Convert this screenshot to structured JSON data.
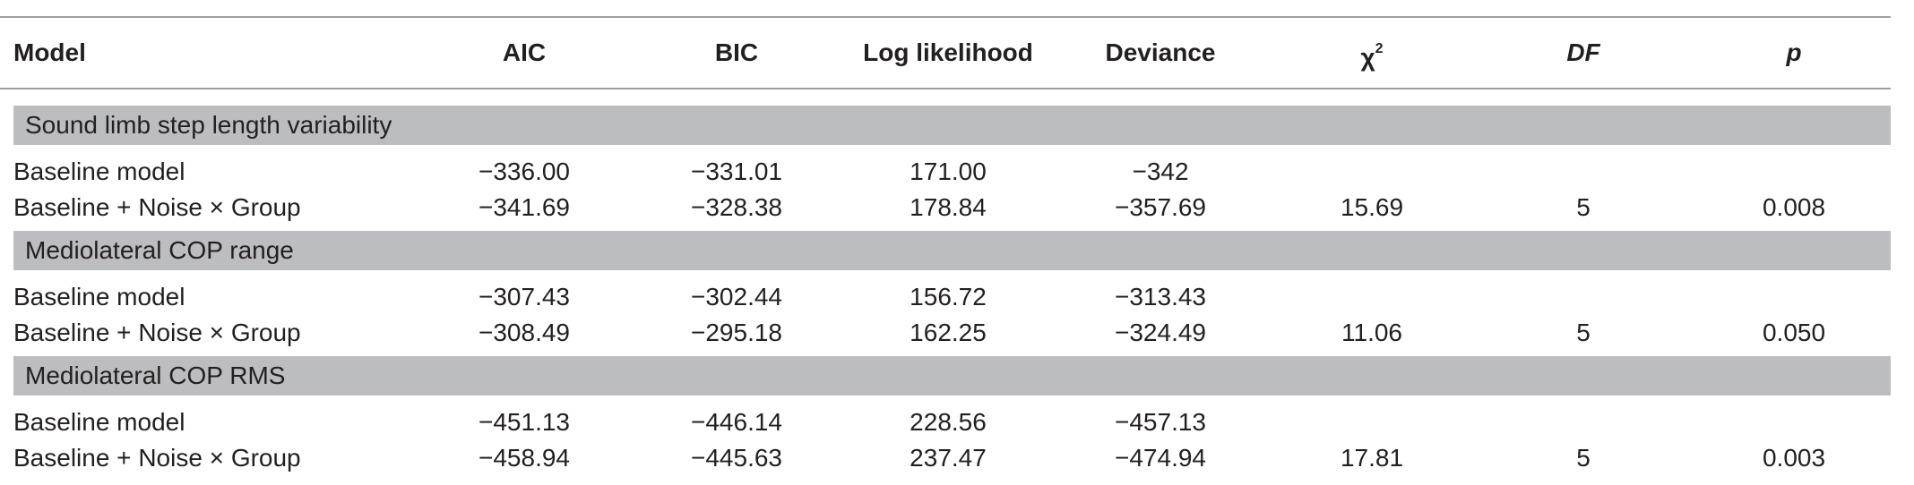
{
  "table": {
    "headers": {
      "model": "Model",
      "aic": "AIC",
      "bic": "BIC",
      "loglik": "Log likelihood",
      "deviance": "Deviance",
      "chi_base": "χ",
      "chi_sup": "2",
      "df": "DF",
      "p": "p"
    },
    "sections": [
      {
        "label": "Sound limb step length variability",
        "rows": [
          {
            "model": "Baseline model",
            "aic": "−336.00",
            "bic": "−331.01",
            "loglik": "171.00",
            "deviance": "−342",
            "chi2": "",
            "df": "",
            "p": ""
          },
          {
            "model": "Baseline + Noise × Group",
            "aic": "−341.69",
            "bic": "−328.38",
            "loglik": "178.84",
            "deviance": "−357.69",
            "chi2": "15.69",
            "df": "5",
            "p": "0.008"
          }
        ]
      },
      {
        "label": "Mediolateral COP range",
        "rows": [
          {
            "model": "Baseline model",
            "aic": "−307.43",
            "bic": "−302.44",
            "loglik": "156.72",
            "deviance": "−313.43",
            "chi2": "",
            "df": "",
            "p": ""
          },
          {
            "model": "Baseline + Noise × Group",
            "aic": "−308.49",
            "bic": "−295.18",
            "loglik": "162.25",
            "deviance": "−324.49",
            "chi2": "11.06",
            "df": "5",
            "p": "0.050"
          }
        ]
      },
      {
        "label": "Mediolateral COP RMS",
        "rows": [
          {
            "model": "Baseline model",
            "aic": "−451.13",
            "bic": "−446.14",
            "loglik": "228.56",
            "deviance": "−457.13",
            "chi2": "",
            "df": "",
            "p": ""
          },
          {
            "model": "Baseline + Noise × Group",
            "aic": "−458.94",
            "bic": "−445.63",
            "loglik": "237.47",
            "deviance": "−474.94",
            "chi2": "17.81",
            "df": "5",
            "p": "0.003"
          }
        ]
      }
    ]
  }
}
